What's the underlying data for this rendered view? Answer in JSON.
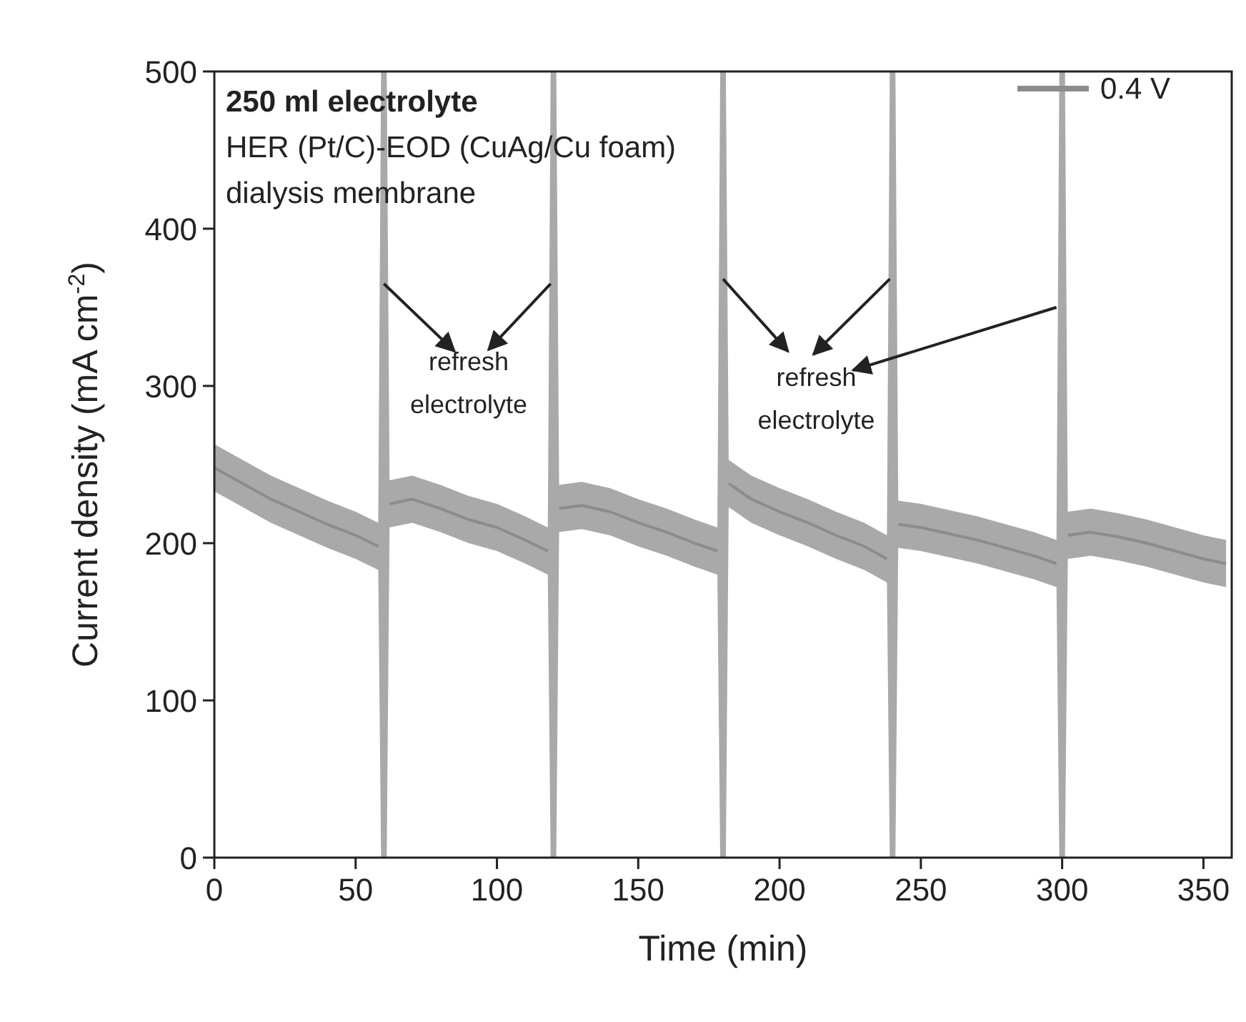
{
  "chart_data": {
    "type": "line",
    "xlabel": "Time (min)",
    "ylabel": "Current density (mA cm$^{-2}$)",
    "xlim": [
      0,
      360
    ],
    "ylim": [
      0,
      500
    ],
    "xticks": [
      0,
      50,
      100,
      150,
      200,
      250,
      300,
      350
    ],
    "yticks": [
      0,
      100,
      200,
      300,
      400,
      500
    ],
    "grid": false,
    "legend": "top right",
    "marker": "none",
    "line_style": "solid",
    "annotations": [
      "250 ml electrolyte",
      "HER (Pt/C)-EOD (CuAg/Cu foam)",
      "dialysis membrane",
      "refresh electrolyte",
      "refresh electrolyte"
    ],
    "series": [
      {
        "name": "0.4 V",
        "color": "#8c8c8c",
        "x": [
          0,
          10,
          20,
          30,
          40,
          50,
          58,
          59,
          61,
          62,
          70,
          80,
          90,
          100,
          110,
          118,
          119,
          121,
          122,
          130,
          140,
          150,
          160,
          170,
          178,
          179,
          181,
          182,
          190,
          200,
          210,
          220,
          230,
          238,
          239,
          241,
          242,
          250,
          260,
          270,
          280,
          290,
          298,
          299,
          301,
          302,
          310,
          320,
          330,
          340,
          350,
          358
        ],
        "values": [
          248,
          238,
          228,
          220,
          212,
          205,
          198,
          null,
          null,
          225,
          228,
          222,
          215,
          210,
          202,
          195,
          null,
          null,
          222,
          224,
          220,
          213,
          207,
          200,
          195,
          null,
          null,
          238,
          228,
          220,
          213,
          205,
          198,
          190,
          null,
          null,
          212,
          210,
          206,
          202,
          197,
          192,
          187,
          null,
          null,
          205,
          207,
          204,
          200,
          195,
          190,
          187
        ],
        "lower": [
          233,
          223,
          213,
          205,
          197,
          190,
          183,
          0,
          0,
          210,
          213,
          207,
          200,
          195,
          187,
          180,
          0,
          0,
          207,
          209,
          205,
          198,
          192,
          185,
          180,
          0,
          0,
          223,
          213,
          205,
          198,
          190,
          183,
          175,
          0,
          0,
          197,
          195,
          191,
          187,
          182,
          177,
          172,
          0,
          0,
          190,
          192,
          189,
          185,
          180,
          175,
          172
        ],
        "upper": [
          263,
          253,
          243,
          235,
          227,
          220,
          213,
          500,
          500,
          240,
          243,
          237,
          230,
          225,
          217,
          210,
          500,
          500,
          237,
          239,
          235,
          228,
          222,
          215,
          210,
          500,
          500,
          253,
          243,
          235,
          228,
          220,
          213,
          205,
          500,
          500,
          227,
          225,
          221,
          217,
          212,
          207,
          202,
          500,
          500,
          220,
          222,
          219,
          215,
          210,
          205,
          202
        ]
      }
    ]
  }
}
